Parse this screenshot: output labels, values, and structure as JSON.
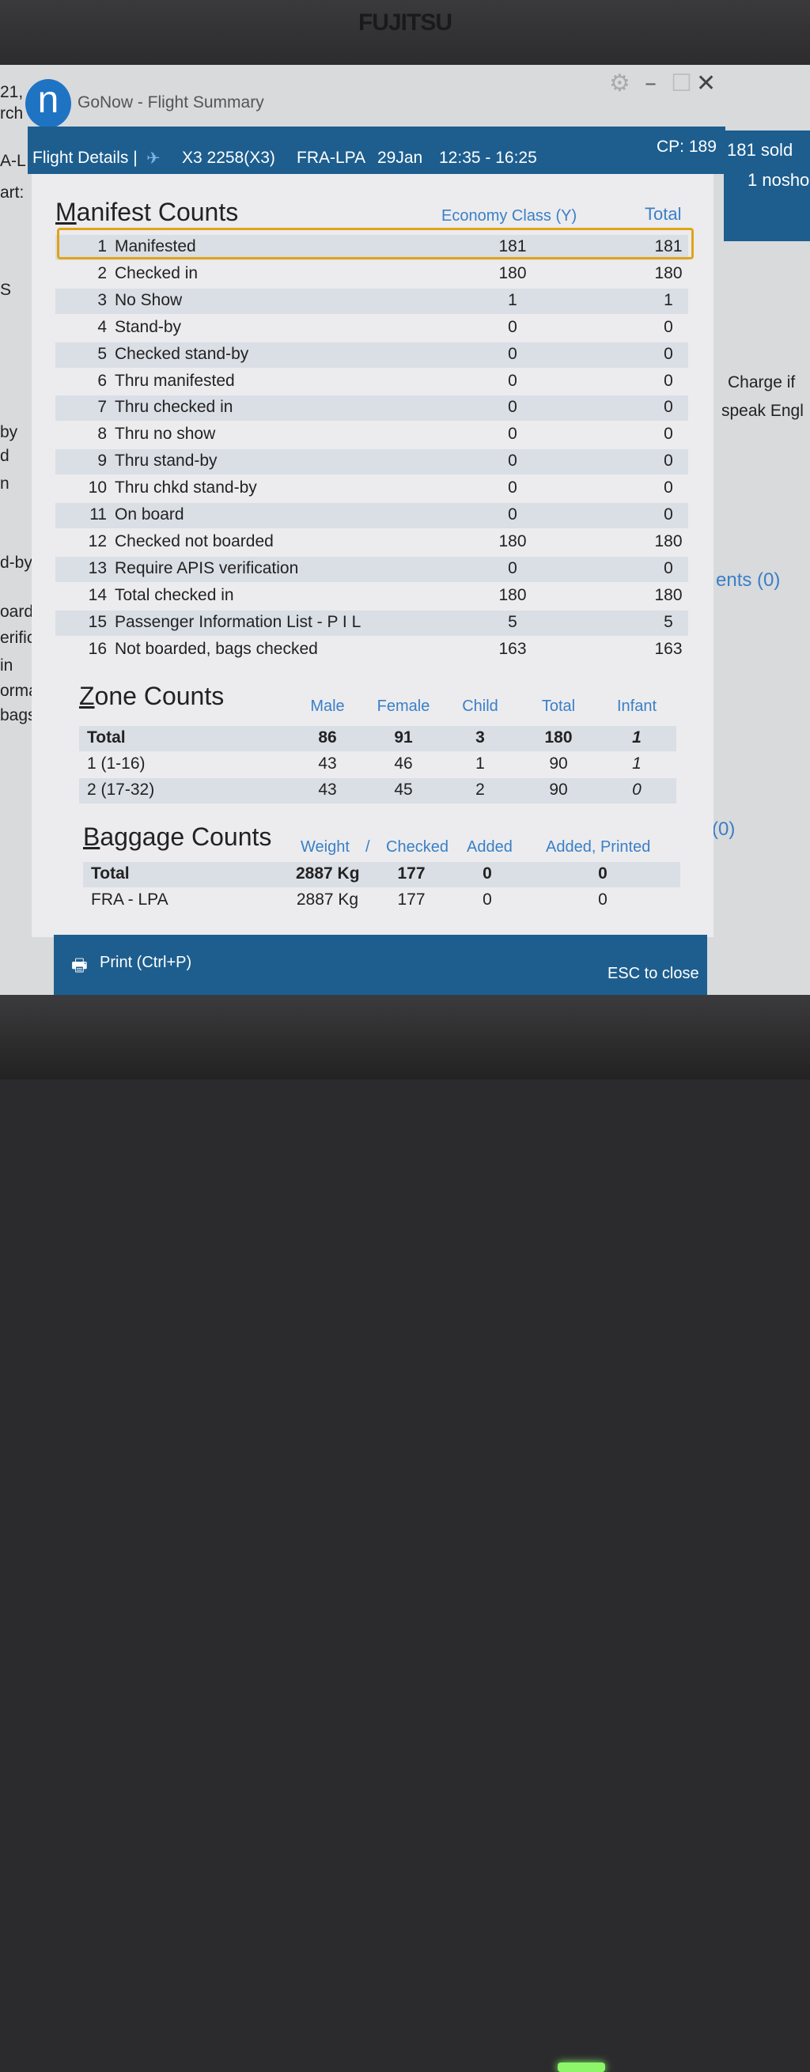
{
  "monitor_brand": "FUJITSU",
  "window": {
    "title": "GoNow - Flight Summary",
    "logo_letter": "n"
  },
  "background_left": [
    "21,",
    "rch",
    "A-L",
    "art:",
    "S",
    "by",
    "d",
    "n",
    "d-by",
    "oarde",
    "erific",
    "in",
    "ormat",
    "bags ("
  ],
  "background_right": {
    "sold": "181 sold",
    "noshow": "1 nosho",
    "charge": "Charge if",
    "speak": "speak Engl",
    "comments": "ents (0)",
    "other": "(0)"
  },
  "header": {
    "label": "Flight Details |",
    "flight": "X3 2258(X3)",
    "route": "FRA-LPA",
    "date": "29Jan",
    "time": "12:35 - 16:25",
    "cp": "CP: 189"
  },
  "manifest": {
    "title": "Manifest Counts",
    "col_economy": "Economy Class (Y)",
    "col_total": "Total",
    "rows": [
      [
        "1",
        "Manifested",
        "181",
        "181"
      ],
      [
        "2",
        "Checked in",
        "180",
        "180"
      ],
      [
        "3",
        "No Show",
        "1",
        "1"
      ],
      [
        "4",
        "Stand-by",
        "0",
        "0"
      ],
      [
        "5",
        "Checked stand-by",
        "0",
        "0"
      ],
      [
        "6",
        "Thru manifested",
        "0",
        "0"
      ],
      [
        "7",
        "Thru checked in",
        "0",
        "0"
      ],
      [
        "8",
        "Thru no show",
        "0",
        "0"
      ],
      [
        "9",
        "Thru stand-by",
        "0",
        "0"
      ],
      [
        "10",
        "Thru chkd stand-by",
        "0",
        "0"
      ],
      [
        "11",
        "On board",
        "0",
        "0"
      ],
      [
        "12",
        "Checked not boarded",
        "180",
        "180"
      ],
      [
        "13",
        "Require APIS verification",
        "0",
        "0"
      ],
      [
        "14",
        "Total checked in",
        "180",
        "180"
      ],
      [
        "15",
        "Passenger Information List - P I L",
        "5",
        "5"
      ],
      [
        "16",
        "Not boarded, bags checked",
        "163",
        "163"
      ]
    ]
  },
  "zone": {
    "title": "Zone Counts",
    "columns": [
      "Male",
      "Female",
      "Child",
      "Total",
      "Infant"
    ],
    "rows": [
      [
        "Total",
        "86",
        "91",
        "3",
        "180",
        "1"
      ],
      [
        "1 (1-16)",
        "43",
        "46",
        "1",
        "90",
        "1"
      ],
      [
        "2 (17-32)",
        "43",
        "45",
        "2",
        "90",
        "0"
      ]
    ]
  },
  "baggage": {
    "title": "Baggage Counts",
    "columns": [
      "Weight",
      "/",
      "Checked",
      "Added",
      "Added, Printed"
    ],
    "rows": [
      [
        "Total",
        "2887 Kg",
        "177",
        "0",
        "0"
      ],
      [
        "FRA - LPA",
        "2887 Kg",
        "177",
        "0",
        "0"
      ]
    ]
  },
  "footer": {
    "print": "Print (Ctrl+P)",
    "close": "ESC to close"
  }
}
